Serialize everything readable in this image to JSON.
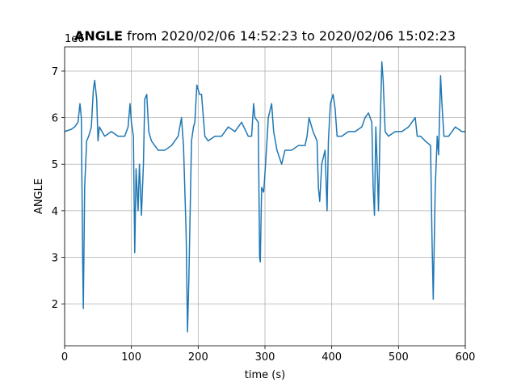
{
  "chart_data": {
    "type": "line",
    "title_bold": "ANGLE",
    "title": "from 2020/02/06 14:52:23 to 2020/02/06 15:02:23",
    "y_offset_label": "1e6",
    "xlabel": "time (s)",
    "ylabel": "ANGLE",
    "xlim": [
      0,
      600
    ],
    "xticks": [
      0,
      100,
      200,
      300,
      400,
      500,
      600
    ],
    "ylim": [
      1.1,
      7.52
    ],
    "yticks": [
      2,
      3,
      4,
      5,
      6,
      7
    ],
    "grid": true,
    "x": [
      0,
      10,
      15,
      20,
      23,
      25,
      27,
      28,
      30,
      33,
      36,
      40,
      43,
      45,
      48,
      50,
      52,
      60,
      70,
      80,
      90,
      95,
      98,
      100,
      103,
      105,
      107,
      110,
      112,
      115,
      118,
      120,
      123,
      126,
      130,
      140,
      150,
      160,
      170,
      175,
      178,
      182,
      184,
      186,
      188,
      190,
      193,
      195,
      198,
      202,
      205,
      210,
      215,
      225,
      235,
      245,
      255,
      265,
      275,
      280,
      283,
      285,
      290,
      292,
      293,
      295,
      298,
      300,
      303,
      305,
      310,
      313,
      318,
      325,
      330,
      340,
      350,
      360,
      363,
      366,
      372,
      378,
      380,
      382,
      385,
      390,
      393,
      395,
      398,
      402,
      405,
      408,
      415,
      425,
      435,
      445,
      450,
      455,
      460,
      462,
      464,
      466,
      468,
      470,
      472,
      475,
      477,
      480,
      485,
      495,
      505,
      515,
      525,
      528,
      533,
      540,
      548,
      550,
      552,
      555,
      558,
      560,
      563,
      565,
      568,
      575,
      585,
      595,
      600
    ],
    "series": [
      {
        "color": "#1f77b4",
        "values": [
          5.7,
          5.75,
          5.8,
          5.9,
          6.3,
          6.0,
          3.0,
          1.9,
          4.5,
          5.5,
          5.6,
          5.8,
          6.6,
          6.8,
          6.4,
          5.5,
          5.8,
          5.6,
          5.7,
          5.6,
          5.6,
          5.8,
          6.3,
          5.9,
          5.6,
          3.1,
          4.9,
          4.0,
          5.0,
          3.9,
          5.0,
          6.4,
          6.5,
          5.7,
          5.5,
          5.3,
          5.3,
          5.4,
          5.6,
          6.0,
          5.4,
          3.5,
          1.4,
          2.5,
          4.0,
          5.5,
          5.8,
          5.9,
          6.7,
          6.5,
          6.5,
          5.6,
          5.5,
          5.6,
          5.6,
          5.8,
          5.7,
          5.9,
          5.6,
          5.6,
          6.3,
          6.0,
          5.9,
          3.0,
          2.9,
          4.5,
          4.4,
          4.8,
          5.5,
          6.0,
          6.3,
          5.7,
          5.3,
          5.0,
          5.3,
          5.3,
          5.4,
          5.4,
          5.6,
          6.0,
          5.7,
          5.5,
          4.5,
          4.2,
          5.0,
          5.3,
          4.0,
          5.5,
          6.3,
          6.5,
          6.2,
          5.6,
          5.6,
          5.7,
          5.7,
          5.8,
          6.0,
          6.1,
          5.9,
          4.5,
          3.9,
          5.8,
          5.0,
          4.0,
          5.5,
          7.2,
          6.8,
          5.7,
          5.6,
          5.7,
          5.7,
          5.8,
          6.0,
          5.6,
          5.6,
          5.5,
          5.4,
          3.5,
          2.1,
          4.5,
          5.6,
          5.2,
          6.9,
          6.3,
          5.6,
          5.6,
          5.8,
          5.7,
          5.7
        ]
      }
    ]
  }
}
